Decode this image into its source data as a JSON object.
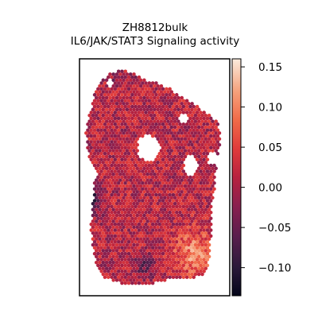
{
  "chart_data": {
    "type": "heatmap",
    "title": "ZH8812bulk",
    "subtitle": "IL6/JAK/STAT3 Signaling activity",
    "colorbar": {
      "colormap": "rocket",
      "range": [
        -0.135,
        0.16
      ],
      "ticks": [
        0.15,
        0.1,
        0.05,
        0.0,
        -0.05,
        -0.1
      ],
      "tick_labels": [
        "0.15",
        "0.10",
        "0.05",
        "0.00",
        "−0.05",
        "−0.10"
      ]
    },
    "spot_value_distribution": {
      "median": 0.01,
      "high_region": "bottom-right",
      "low_region": "left edge and bottom-center"
    },
    "grid": false,
    "axis_ticks": false
  }
}
